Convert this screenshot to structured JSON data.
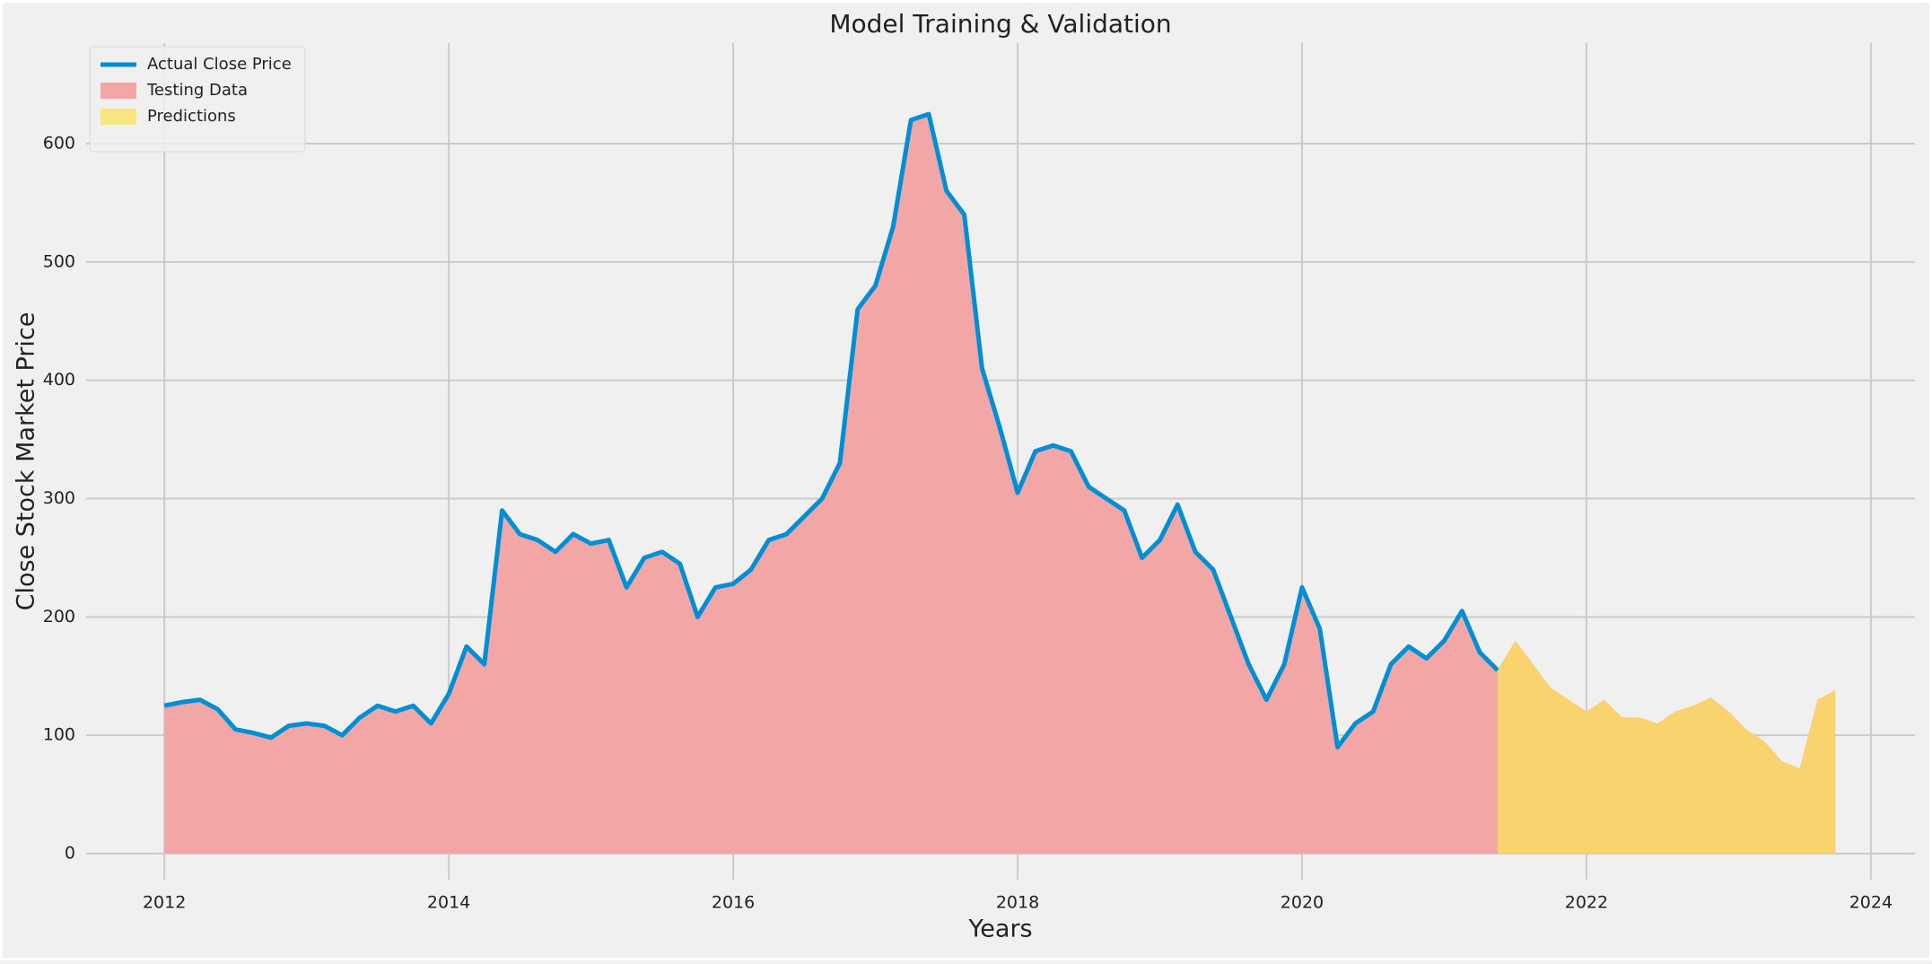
{
  "chart_data": {
    "type": "line",
    "title": "Model Training & Validation",
    "x_label": "Years",
    "y_label": "Close Stock Market Price",
    "x": [
      2012,
      2012.125,
      2012.25,
      2012.375,
      2012.5,
      2012.625,
      2012.75,
      2012.875,
      2013,
      2013.125,
      2013.25,
      2013.375,
      2013.5,
      2013.625,
      2013.75,
      2013.875,
      2014,
      2014.125,
      2014.25,
      2014.375,
      2014.5,
      2014.625,
      2014.75,
      2014.875,
      2015,
      2015.125,
      2015.25,
      2015.375,
      2015.5,
      2015.625,
      2015.75,
      2015.875,
      2016,
      2016.125,
      2016.25,
      2016.375,
      2016.5,
      2016.625,
      2016.75,
      2016.875,
      2017,
      2017.125,
      2017.25,
      2017.375,
      2017.5,
      2017.625,
      2017.75,
      2017.875,
      2018,
      2018.125,
      2018.25,
      2018.375,
      2018.5,
      2018.625,
      2018.75,
      2018.875,
      2019,
      2019.125,
      2019.25,
      2019.375,
      2019.5,
      2019.625,
      2019.75,
      2019.875,
      2020,
      2020.125,
      2020.25,
      2020.375,
      2020.5,
      2020.625,
      2020.75,
      2020.875,
      2021,
      2021.125,
      2021.25,
      2021.375,
      2021.5,
      2021.625,
      2021.75,
      2021.875,
      2022,
      2022.125,
      2022.25,
      2022.375,
      2022.5,
      2022.625,
      2022.75,
      2022.875,
      2023,
      2023.125,
      2023.25,
      2023.375,
      2023.5,
      2023.625,
      2023.75
    ],
    "series": [
      {
        "name": "Testing Data",
        "type": "area",
        "color": "#f2a6a6",
        "values": [
          125,
          128,
          130,
          122,
          105,
          102,
          98,
          108,
          110,
          108,
          100,
          115,
          125,
          120,
          125,
          110,
          135,
          175,
          160,
          290,
          270,
          265,
          255,
          270,
          262,
          265,
          225,
          250,
          255,
          245,
          200,
          225,
          228,
          240,
          265,
          270,
          285,
          300,
          330,
          460,
          480,
          530,
          620,
          625,
          560,
          540,
          410,
          360,
          305,
          340,
          345,
          340,
          310,
          300,
          290,
          250,
          265,
          295,
          255,
          240,
          200,
          160,
          130,
          160,
          225,
          190,
          90,
          110,
          120,
          160,
          175,
          165,
          180,
          205,
          170,
          155,
          180,
          160,
          140,
          130,
          120,
          130,
          115,
          115,
          110,
          120,
          125,
          132,
          120,
          105,
          95,
          78,
          72,
          130,
          138
        ]
      },
      {
        "name": "Predictions",
        "type": "area",
        "color": "#fbe15a",
        "values": [
          null,
          null,
          null,
          null,
          null,
          null,
          null,
          null,
          null,
          null,
          null,
          null,
          null,
          null,
          null,
          null,
          null,
          null,
          null,
          null,
          null,
          null,
          null,
          null,
          null,
          null,
          null,
          null,
          null,
          null,
          null,
          null,
          null,
          null,
          null,
          null,
          null,
          null,
          null,
          null,
          null,
          null,
          null,
          null,
          null,
          null,
          null,
          null,
          null,
          null,
          null,
          null,
          null,
          null,
          null,
          null,
          null,
          null,
          null,
          null,
          null,
          null,
          null,
          null,
          null,
          null,
          null,
          null,
          null,
          null,
          null,
          null,
          null,
          null,
          null,
          155,
          180,
          160,
          140,
          130,
          120,
          130,
          115,
          115,
          110,
          120,
          125,
          132,
          120,
          105,
          95,
          78,
          72,
          130,
          138
        ]
      },
      {
        "name": "Actual Close Price",
        "type": "line",
        "color": "#008fd5",
        "values": [
          125,
          128,
          130,
          122,
          105,
          102,
          98,
          108,
          110,
          108,
          100,
          115,
          125,
          120,
          125,
          110,
          135,
          175,
          160,
          290,
          270,
          265,
          255,
          270,
          262,
          265,
          225,
          250,
          255,
          245,
          200,
          225,
          228,
          240,
          265,
          270,
          285,
          300,
          330,
          460,
          480,
          530,
          620,
          625,
          560,
          540,
          410,
          360,
          305,
          340,
          345,
          340,
          310,
          300,
          290,
          250,
          265,
          295,
          255,
          240,
          200,
          160,
          130,
          160,
          225,
          190,
          90,
          110,
          120,
          160,
          175,
          165,
          180,
          205,
          170,
          155,
          null,
          null,
          null,
          null,
          null,
          null,
          null,
          null,
          null,
          null,
          null,
          null,
          null,
          null,
          null,
          null,
          null,
          null,
          null
        ]
      }
    ],
    "legend_order": [
      2,
      0,
      1
    ],
    "xlim": [
      2011.45,
      2024.31
    ],
    "xticks": [
      2012,
      2014,
      2016,
      2018,
      2020,
      2022,
      2024
    ],
    "ylim": [
      -22,
      685
    ],
    "yticks": [
      0,
      100,
      200,
      300,
      400,
      500,
      600
    ],
    "grid": true,
    "legend": "upper left"
  }
}
